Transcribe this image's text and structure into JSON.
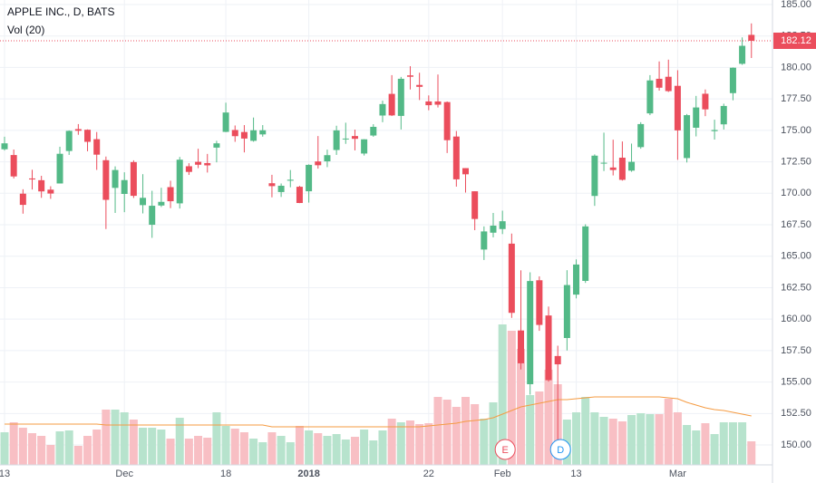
{
  "chart_data": {
    "type": "candlestick",
    "title": "APPLE INC., D, BATS",
    "up_color": "#53b987",
    "down_color": "#eb4d5c",
    "open": [
      173.5,
      173.04,
      169.97,
      171.18,
      171.04,
      170.29,
      170.78,
      173.36,
      175.1,
      175.05,
      174.3,
      172.63,
      170.43,
      169.95,
      172.48,
      169.06,
      167.5,
      169.03,
      170.49,
      169.2,
      172.15,
      172.5,
      172.4,
      173.63,
      174.88,
      175.03,
      174.87,
      174.17,
      174.68,
      170.8,
      170.1,
      171.0,
      170.52,
      170.16,
      172.53,
      172.54,
      173.44,
      174.35,
      174.55,
      173.16,
      174.59,
      176.18,
      177.9,
      176.15,
      179.37,
      178.61,
      177.3,
      177.3,
      177.25,
      174.51,
      172.0,
      170.16,
      165.53,
      166.87,
      167.16,
      166.0,
      159.1,
      154.83,
      163.09,
      160.29,
      157.07,
      158.5,
      161.95,
      163.04,
      169.79,
      172.36,
      172.05,
      172.83,
      171.8,
      173.67,
      176.35,
      179.1,
      179.26,
      178.54,
      172.8,
      175.21,
      177.91,
      174.94,
      175.48,
      177.96,
      180.29,
      182.59
    ],
    "high": [
      174.5,
      173.48,
      170.32,
      171.87,
      171.39,
      170.56,
      173.7,
      175.0,
      175.5,
      175.08,
      174.87,
      172.92,
      172.14,
      171.67,
      172.62,
      171.52,
      170.2,
      170.44,
      171.0,
      172.89,
      172.39,
      173.54,
      173.13,
      174.17,
      177.2,
      175.39,
      175.42,
      176.02,
      175.42,
      171.47,
      170.78,
      171.85,
      170.59,
      172.3,
      174.55,
      173.47,
      175.37,
      175.61,
      175.06,
      174.3,
      175.49,
      177.36,
      179.39,
      179.25,
      180.1,
      179.58,
      177.78,
      179.44,
      177.3,
      174.95,
      172.0,
      170.16,
      167.37,
      168.44,
      168.62,
      166.8,
      163.88,
      163.72,
      163.4,
      161.0,
      157.89,
      163.89,
      164.75,
      167.54,
      173.09,
      174.82,
      174.26,
      174.12,
      173.95,
      175.65,
      179.39,
      180.48,
      180.62,
      179.78,
      176.3,
      177.74,
      178.25,
      175.85,
      177.12,
      180.0,
      182.39,
      183.5
    ],
    "low": [
      173.4,
      171.18,
      168.38,
      170.3,
      169.64,
      169.56,
      170.78,
      173.05,
      174.65,
      173.34,
      171.86,
      167.16,
      168.44,
      168.5,
      169.63,
      168.4,
      166.46,
      168.91,
      168.82,
      168.79,
      171.46,
      172.0,
      171.65,
      172.46,
      174.86,
      174.09,
      173.25,
      174.1,
      174.5,
      169.68,
      169.71,
      170.48,
      169.22,
      169.26,
      171.96,
      172.08,
      173.05,
      173.93,
      173.41,
      173.0,
      174.49,
      175.65,
      176.14,
      175.07,
      178.25,
      177.41,
      176.6,
      176.82,
      173.2,
      170.53,
      170.06,
      167.07,
      164.7,
      166.5,
      166.76,
      160.1,
      156.0,
      154.0,
      159.07,
      155.03,
      150.24,
      157.51,
      161.65,
      162.88,
      169.0,
      171.77,
      171.42,
      171.01,
      171.71,
      173.54,
      176.21,
      178.16,
      178.05,
      172.66,
      172.45,
      174.52,
      176.13,
      174.27,
      175.07,
      177.39,
      180.21,
      180.75
    ],
    "close": [
      173.97,
      171.34,
      169.08,
      171.1,
      170.15,
      169.98,
      173.14,
      174.96,
      174.97,
      174.09,
      173.07,
      169.48,
      171.85,
      171.05,
      169.8,
      169.64,
      169.01,
      169.32,
      169.37,
      172.67,
      171.7,
      172.27,
      172.22,
      173.97,
      176.42,
      174.54,
      174.35,
      175.01,
      175.01,
      170.57,
      170.6,
      171.08,
      169.23,
      172.26,
      172.23,
      173.03,
      175.0,
      174.35,
      174.33,
      174.29,
      175.28,
      177.09,
      176.19,
      179.1,
      179.26,
      178.46,
      177.0,
      177.04,
      174.22,
      171.11,
      171.51,
      167.96,
      166.97,
      167.43,
      167.78,
      160.5,
      156.49,
      163.03,
      159.54,
      155.15,
      156.41,
      162.71,
      164.34,
      167.37,
      172.99,
      172.43,
      171.85,
      171.07,
      172.5,
      175.5,
      178.97,
      178.39,
      178.12,
      175.0,
      176.21,
      176.82,
      176.67,
      175.03,
      176.94,
      179.98,
      181.72,
      182.12
    ],
    "volume": {
      "name": "Vol (20)",
      "up_color": "#b7e3cd",
      "down_color": "#f8bfc4",
      "ma_color": "#f59b42",
      "values": [
        36,
        47,
        41,
        35,
        32,
        22,
        37,
        38,
        21,
        32,
        39,
        61,
        61,
        58,
        50,
        41,
        41,
        39,
        29,
        52,
        29,
        32,
        30,
        58,
        43,
        40,
        36,
        29,
        25,
        36,
        32,
        25,
        43,
        38,
        35,
        32,
        34,
        28,
        31,
        39,
        27,
        38,
        51,
        47,
        49,
        45,
        46,
        75,
        72,
        64,
        75,
        67,
        51,
        69,
        155,
        148,
        128,
        77,
        81,
        105,
        89,
        50,
        58,
        75,
        58,
        53,
        51,
        48,
        55,
        57,
        56,
        56,
        73,
        58,
        44,
        38,
        46,
        34,
        47,
        47,
        47,
        26
      ],
      "ma_values": [
        45,
        45,
        45,
        45,
        45,
        45,
        45,
        45,
        45,
        45,
        45,
        44,
        44,
        44,
        44,
        44,
        44,
        44,
        44,
        44,
        44,
        44,
        44,
        44,
        44,
        44,
        44,
        44,
        44,
        42,
        42,
        42,
        42,
        42,
        42,
        42,
        42,
        42,
        42,
        42,
        42,
        42,
        42,
        42,
        42,
        42,
        43,
        44,
        45,
        46,
        48,
        49,
        50,
        52,
        56,
        60,
        64,
        66,
        68,
        70,
        72,
        72,
        73,
        74,
        75,
        75,
        75,
        75,
        75,
        75,
        75,
        75,
        74,
        73,
        69,
        66,
        63,
        61,
        60,
        58,
        56,
        54
      ]
    },
    "events": [
      {
        "label": "E",
        "index": 54,
        "color": "#eb4d5c"
      },
      {
        "label": "D",
        "index": 60,
        "color": "#2196f3"
      }
    ],
    "ylim": [
      148.42,
      185.36
    ],
    "yticks": [
      {
        "value": 150,
        "label": "150.00"
      },
      {
        "value": 152.5,
        "label": "152.50"
      },
      {
        "value": 155,
        "label": "155.00"
      },
      {
        "value": 157.5,
        "label": "157.50"
      },
      {
        "value": 160,
        "label": "160.00"
      },
      {
        "value": 162.5,
        "label": "162.50"
      },
      {
        "value": 165,
        "label": "165.00"
      },
      {
        "value": 167.5,
        "label": "167.50"
      },
      {
        "value": 170,
        "label": "170.00"
      },
      {
        "value": 172.5,
        "label": "172.50"
      },
      {
        "value": 175,
        "label": "175.00"
      },
      {
        "value": 177.5,
        "label": "177.50"
      },
      {
        "value": 180,
        "label": "180.00"
      },
      {
        "value": 182.5,
        "label": "182.50"
      },
      {
        "value": 185,
        "label": "185.00"
      }
    ],
    "xticks": [
      {
        "value": 0,
        "label": "13"
      },
      {
        "value": 13,
        "label": "Dec"
      },
      {
        "value": 24,
        "label": "18"
      },
      {
        "value": 33,
        "label": "2018"
      },
      {
        "value": 46,
        "label": "22"
      },
      {
        "value": 54,
        "label": "Feb"
      },
      {
        "value": 62,
        "label": "13"
      },
      {
        "value": 73,
        "label": "Mar"
      }
    ],
    "grid": true
  }
}
